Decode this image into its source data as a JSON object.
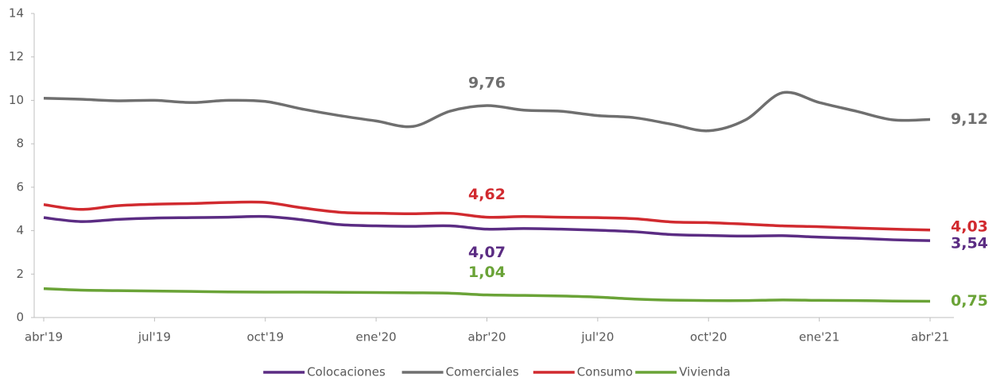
{
  "chart_data": {
    "type": "line",
    "categories": [
      "abr'19",
      null,
      null,
      "jul'19",
      null,
      null,
      "oct'19",
      null,
      null,
      "ene'20",
      null,
      null,
      "abr'20",
      null,
      null,
      "jul'20",
      null,
      null,
      "oct'20",
      null,
      null,
      "ene'21",
      null,
      null,
      "abr'21"
    ],
    "ylim": [
      0,
      14
    ],
    "yticks": [
      0,
      2,
      4,
      6,
      8,
      10,
      12,
      14
    ],
    "grid": false,
    "legend": "bottom",
    "series": [
      {
        "name": "Colocaciones",
        "color": "#5b2c83",
        "values": [
          4.6,
          4.42,
          4.52,
          4.58,
          4.6,
          4.62,
          4.65,
          4.5,
          4.28,
          4.22,
          4.2,
          4.22,
          4.07,
          4.1,
          4.07,
          4.02,
          3.95,
          3.82,
          3.78,
          3.75,
          3.77,
          3.7,
          3.65,
          3.58,
          3.54
        ],
        "value_labels": [
          null,
          null,
          null,
          null,
          null,
          null,
          null,
          null,
          null,
          null,
          null,
          null,
          "4,07",
          null,
          null,
          null,
          null,
          null,
          null,
          null,
          null,
          null,
          null,
          null,
          "3,54"
        ]
      },
      {
        "name": "Comerciales",
        "color": "#6f6f6f",
        "values": [
          10.1,
          10.05,
          9.98,
          10.0,
          9.9,
          10.0,
          9.95,
          9.6,
          9.3,
          9.05,
          8.8,
          9.5,
          9.76,
          9.55,
          9.5,
          9.3,
          9.2,
          8.9,
          8.6,
          9.1,
          10.35,
          9.9,
          9.5,
          9.1,
          9.12
        ],
        "value_labels": [
          null,
          null,
          null,
          null,
          null,
          null,
          null,
          null,
          null,
          null,
          null,
          null,
          "9,76",
          null,
          null,
          null,
          null,
          null,
          null,
          null,
          null,
          null,
          null,
          null,
          "9,12"
        ]
      },
      {
        "name": "Consumo",
        "color": "#d12a2f",
        "values": [
          5.2,
          4.98,
          5.15,
          5.22,
          5.25,
          5.3,
          5.3,
          5.05,
          4.85,
          4.8,
          4.78,
          4.8,
          4.62,
          4.65,
          4.62,
          4.6,
          4.55,
          4.4,
          4.37,
          4.3,
          4.22,
          4.18,
          4.12,
          4.07,
          4.03
        ],
        "value_labels": [
          null,
          null,
          null,
          null,
          null,
          null,
          null,
          null,
          null,
          null,
          null,
          null,
          "4,62",
          null,
          null,
          null,
          null,
          null,
          null,
          null,
          null,
          null,
          null,
          null,
          "4,03"
        ]
      },
      {
        "name": "Vivienda",
        "color": "#6aa337",
        "values": [
          1.33,
          1.26,
          1.24,
          1.22,
          1.2,
          1.18,
          1.17,
          1.17,
          1.16,
          1.15,
          1.14,
          1.12,
          1.04,
          1.02,
          0.99,
          0.94,
          0.85,
          0.8,
          0.78,
          0.78,
          0.81,
          0.79,
          0.78,
          0.76,
          0.75
        ],
        "value_labels": [
          null,
          null,
          null,
          null,
          null,
          null,
          null,
          null,
          null,
          null,
          null,
          null,
          "1,04",
          null,
          null,
          null,
          null,
          null,
          null,
          null,
          null,
          null,
          null,
          null,
          "0,75"
        ]
      }
    ]
  }
}
